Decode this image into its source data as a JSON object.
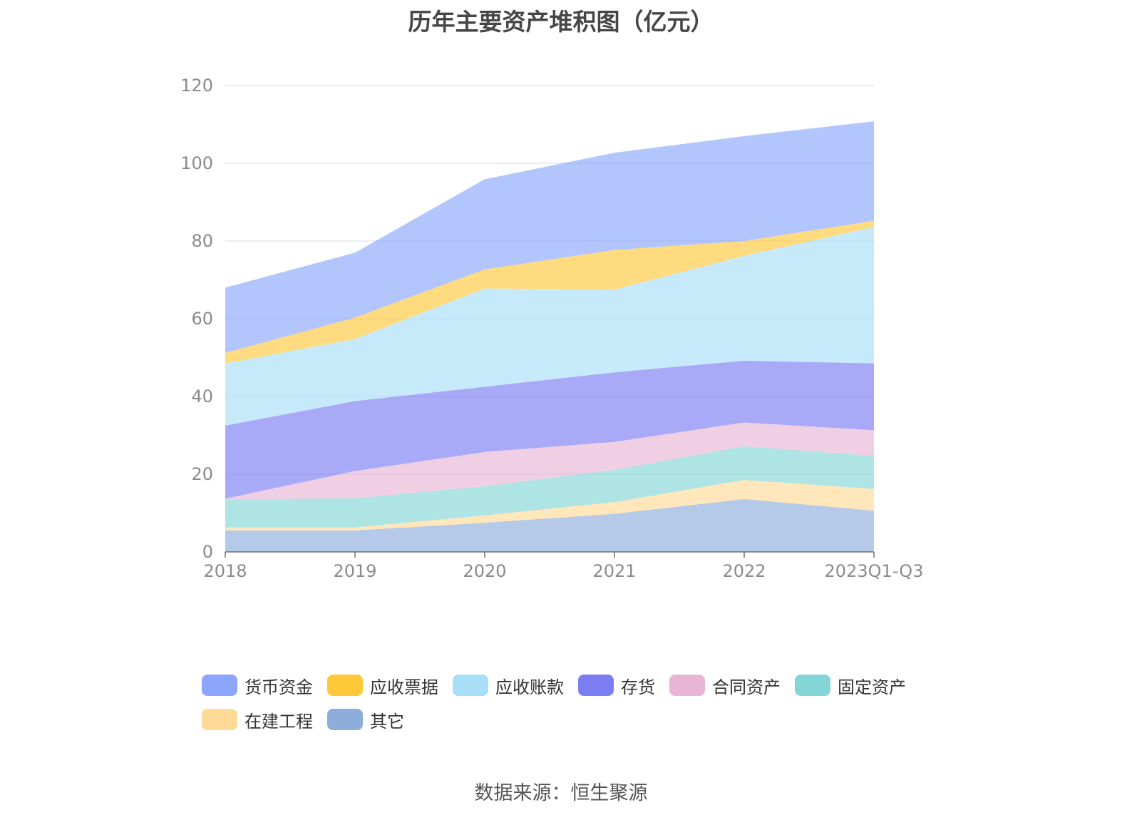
{
  "chart_data": {
    "type": "area",
    "stacked": true,
    "title": "历年主要资产堆积图（亿元）",
    "xlabel": "",
    "ylabel": "",
    "categories": [
      "2018",
      "2019",
      "2020",
      "2021",
      "2022",
      "2023Q1-Q3"
    ],
    "ylim": [
      0,
      120
    ],
    "yticks": [
      0,
      20,
      40,
      60,
      80,
      100,
      120
    ],
    "grid": true,
    "legend_position": "bottom",
    "series": [
      {
        "name": "其它",
        "color": "#8EADDB",
        "values": [
          5.5,
          5.5,
          7.5,
          9.8,
          13.6,
          10.6
        ]
      },
      {
        "name": "在建工程",
        "color": "#FFD996",
        "values": [
          0.8,
          0.8,
          1.9,
          3.0,
          4.9,
          5.6
        ]
      },
      {
        "name": "固定资产",
        "color": "#84D6D6",
        "values": [
          7.2,
          7.5,
          7.5,
          8.3,
          8.7,
          8.5
        ]
      },
      {
        "name": "合同资产",
        "color": "#E8B5D6",
        "values": [
          0.2,
          7.0,
          8.8,
          7.2,
          6.1,
          6.6
        ]
      },
      {
        "name": "存货",
        "color": "#7B7DF2",
        "values": [
          18.8,
          18.0,
          16.8,
          17.9,
          15.9,
          17.2
        ]
      },
      {
        "name": "应收账款",
        "color": "#A8DEF8",
        "values": [
          16.0,
          16.0,
          25.3,
          21.3,
          27.0,
          35.1
        ]
      },
      {
        "name": "应收票据",
        "color": "#FFC73A",
        "values": [
          2.7,
          5.5,
          4.9,
          10.2,
          3.8,
          1.6
        ]
      },
      {
        "name": "货币资金",
        "color": "#8BA6FC",
        "values": [
          16.8,
          16.7,
          23.2,
          25.0,
          27.0,
          25.6
        ]
      }
    ]
  },
  "legend": [
    {
      "name": "货币资金",
      "color": "#8BA6FC"
    },
    {
      "name": "应收票据",
      "color": "#FFC73A"
    },
    {
      "name": "应收账款",
      "color": "#A8DEF8"
    },
    {
      "name": "存货",
      "color": "#7B7DF2"
    },
    {
      "name": "合同资产",
      "color": "#E8B5D6"
    },
    {
      "name": "固定资产",
      "color": "#84D6D6"
    },
    {
      "name": "在建工程",
      "color": "#FFD996"
    },
    {
      "name": "其它",
      "color": "#8EADDB"
    }
  ],
  "source": "数据来源：恒生聚源"
}
